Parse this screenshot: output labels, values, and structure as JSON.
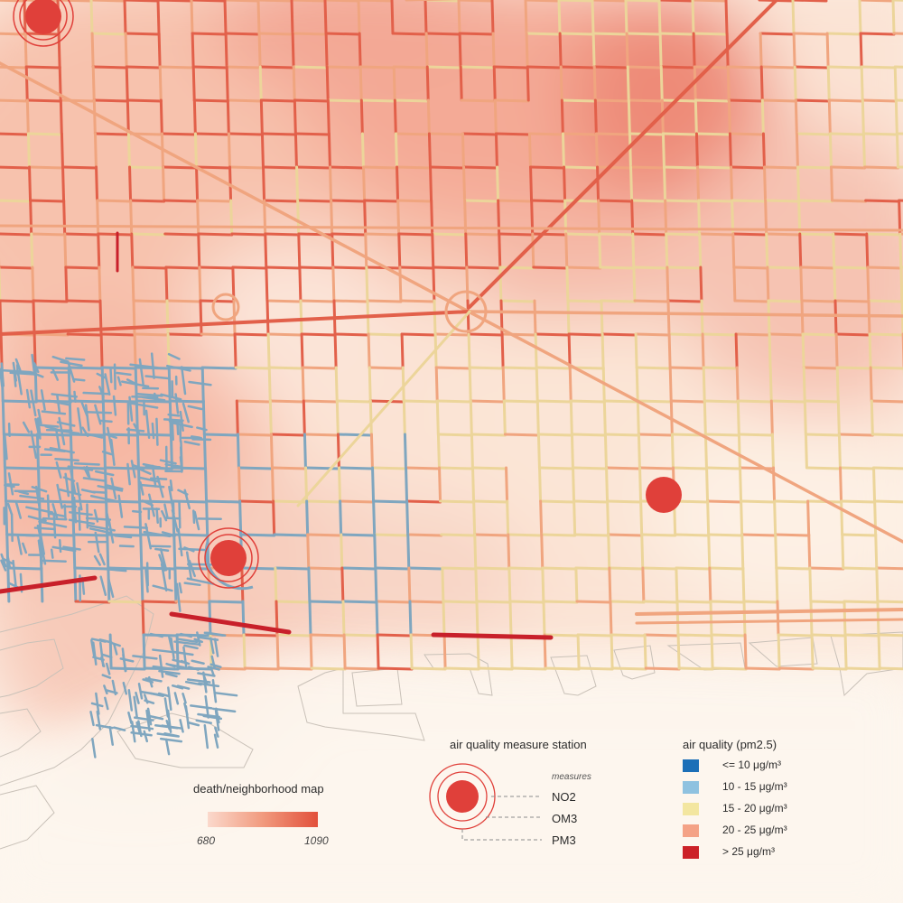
{
  "colors": {
    "background": "#fdf6ee",
    "street_yellow": "#ecd59a",
    "street_orange": "#f0a57f",
    "street_red": "#e2604a",
    "street_darkred": "#c8202a",
    "street_blue": "#7fa6bf",
    "station_red": "#e0403a",
    "heat_low": "#f9d0c0",
    "heat_high": "#e8614a"
  },
  "legend_death": {
    "title": "death/neighborhood map",
    "min_label": "680",
    "max_label": "1090"
  },
  "legend_station": {
    "title": "air quality measure station",
    "measures_label": "measures",
    "measures": [
      "NO2",
      "OM3",
      "PM3"
    ]
  },
  "legend_air_quality": {
    "title": "air quality (pm2.5)",
    "items": [
      {
        "label": "<= 10 μg/m³",
        "color": "#1c6fb7"
      },
      {
        "label": "10 - 15 μg/m³",
        "color": "#8fc2e0"
      },
      {
        "label": "15 - 20 μg/m³",
        "color": "#f3e6a0"
      },
      {
        "label": "20 - 25 μg/m³",
        "color": "#f4a286"
      },
      {
        "label": "> 25 μg/m³",
        "color": "#cc2128"
      }
    ]
  }
}
